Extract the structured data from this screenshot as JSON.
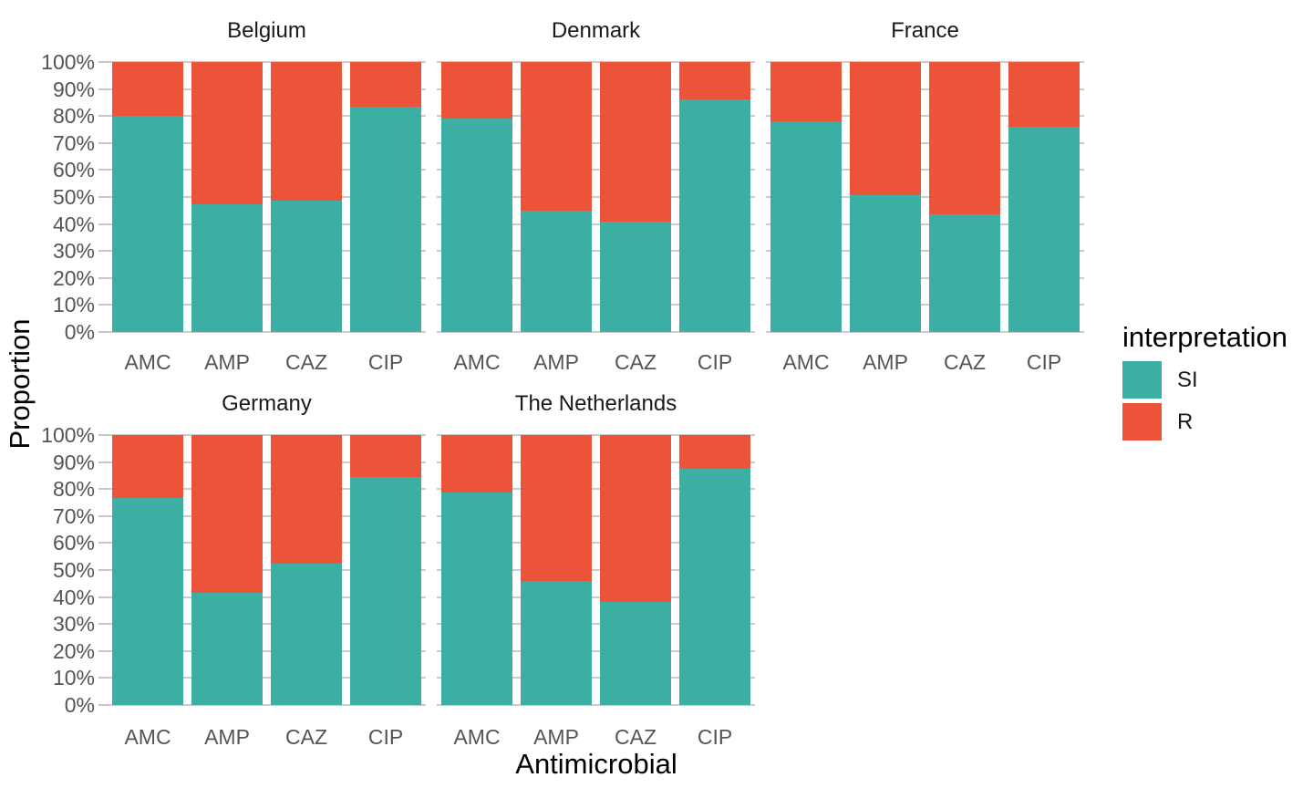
{
  "colors": {
    "si": "#3CAEA3",
    "r": "#EB5438",
    "grid": "#CCCCCC",
    "tick_mark": "#C6C6C6",
    "axis_text": "#555555",
    "strip_text": "#1A1A1A",
    "title_text": "#000000"
  },
  "axes": {
    "y_label": "Proportion",
    "x_label": "Antimicrobial",
    "y_ticks": [
      "0%",
      "10%",
      "20%",
      "30%",
      "40%",
      "50%",
      "60%",
      "70%",
      "80%",
      "90%",
      "100%"
    ]
  },
  "legend": {
    "title": "interpretation",
    "items": [
      {
        "label": "SI",
        "color": "si"
      },
      {
        "label": "R",
        "color": "r"
      }
    ]
  },
  "chart_data": {
    "type": "bar",
    "stacked": true,
    "percent": true,
    "ylim": [
      0,
      100
    ],
    "grid": "major-horizontal",
    "legend_position": "right",
    "categories": [
      "AMC",
      "AMP",
      "CAZ",
      "CIP"
    ],
    "facets": [
      {
        "title": "Belgium",
        "series": [
          {
            "name": "SI",
            "values": [
              80,
              47.3,
              48.8,
              83.4
            ]
          },
          {
            "name": "R",
            "values": [
              20,
              52.7,
              51.2,
              16.6
            ]
          }
        ]
      },
      {
        "title": "Denmark",
        "series": [
          {
            "name": "SI",
            "values": [
              79.2,
              44.8,
              40.9,
              86.1
            ]
          },
          {
            "name": "R",
            "values": [
              20.8,
              55.2,
              59.1,
              13.9
            ]
          }
        ]
      },
      {
        "title": "France",
        "series": [
          {
            "name": "SI",
            "values": [
              78,
              50.8,
              43.7,
              76
            ]
          },
          {
            "name": "R",
            "values": [
              22,
              49.2,
              56.3,
              24
            ]
          }
        ]
      },
      {
        "title": "Germany",
        "series": [
          {
            "name": "SI",
            "values": [
              76.7,
              41.7,
              52.4,
              84.3
            ]
          },
          {
            "name": "R",
            "values": [
              23.3,
              58.3,
              47.6,
              15.7
            ]
          }
        ]
      },
      {
        "title": "The Netherlands",
        "series": [
          {
            "name": "SI",
            "values": [
              78.8,
              45.9,
              38.3,
              87.6
            ]
          },
          {
            "name": "R",
            "values": [
              21.2,
              54.1,
              61.7,
              12.4
            ]
          }
        ]
      }
    ]
  }
}
